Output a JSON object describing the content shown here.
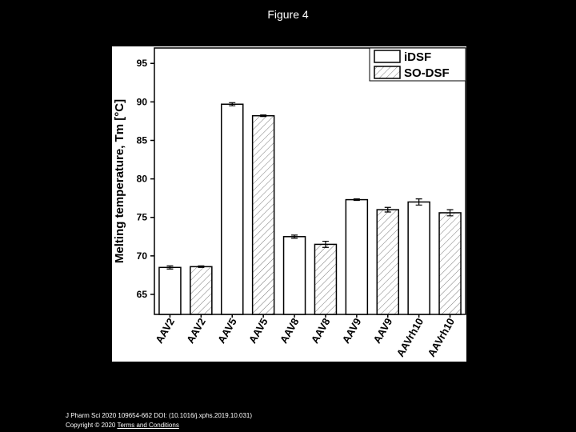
{
  "figure_title": "Figure 4",
  "chart_data": {
    "type": "bar",
    "ylabel": "Melting temperature, Tm [°C]",
    "categories": [
      "AAV2",
      "AAV2",
      "AAV5",
      "AAV5",
      "AAV8",
      "AAV8",
      "AAV9",
      "AAV9",
      "AAVrh10",
      "AAVrh10"
    ],
    "series": [
      {
        "name": "iDSF",
        "color": "#ffffff",
        "pattern": "solid",
        "values": [
          68.5,
          null,
          89.7,
          null,
          72.5,
          null,
          77.3,
          null,
          77.0,
          null
        ],
        "errors": [
          0.2,
          null,
          0.2,
          null,
          0.2,
          null,
          0.1,
          null,
          0.4,
          null
        ]
      },
      {
        "name": "SO-DSF",
        "color": "#ffffff",
        "pattern": "hatch",
        "values": [
          null,
          68.6,
          null,
          88.2,
          null,
          71.5,
          null,
          76.0,
          null,
          75.6
        ],
        "errors": [
          null,
          0.1,
          null,
          0.1,
          null,
          0.4,
          null,
          0.3,
          null,
          0.4
        ]
      }
    ],
    "ylim": [
      62.4,
      97
    ],
    "yticks": [
      65,
      70,
      75,
      80,
      85,
      90,
      95
    ],
    "legend": "upper right"
  },
  "footer": {
    "citation": "J Pharm Sci 2020 109654-662 DOI: (10.1016/j.xphs.2019.10.031)",
    "copyright": "Copyright © 2020",
    "link": "Terms and Conditions"
  }
}
